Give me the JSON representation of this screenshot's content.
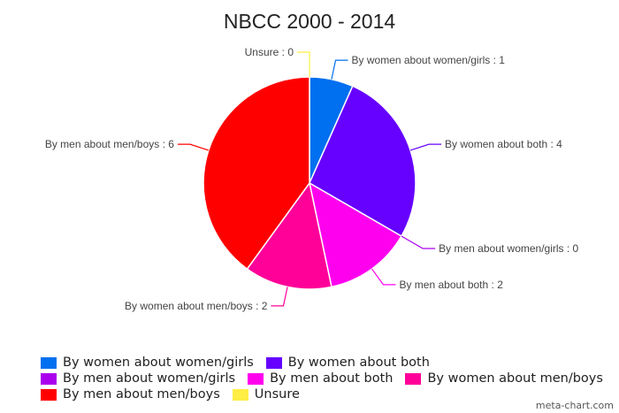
{
  "chart_data": {
    "type": "pie",
    "title": "NBCC 2000 - 2014",
    "slices": [
      {
        "label": "By women about women/girls",
        "value": 1,
        "color": "#0070f0"
      },
      {
        "label": "By women about both",
        "value": 4,
        "color": "#6600ff"
      },
      {
        "label": "By men about women/girls",
        "value": 0,
        "color": "#aa00ee"
      },
      {
        "label": "By men about both",
        "value": 2,
        "color": "#ff00ee"
      },
      {
        "label": "By women about men/boys",
        "value": 2,
        "color": "#ff0099"
      },
      {
        "label": "By men about men/boys",
        "value": 6,
        "color": "#ff0000"
      },
      {
        "label": "Unsure",
        "value": 0,
        "color": "#ffee44"
      }
    ],
    "legend_position": "bottom-left"
  },
  "legend": {
    "rows": [
      [
        0,
        1
      ],
      [
        2,
        3,
        4
      ],
      [
        5,
        6
      ]
    ]
  },
  "credit": "meta-chart.com"
}
